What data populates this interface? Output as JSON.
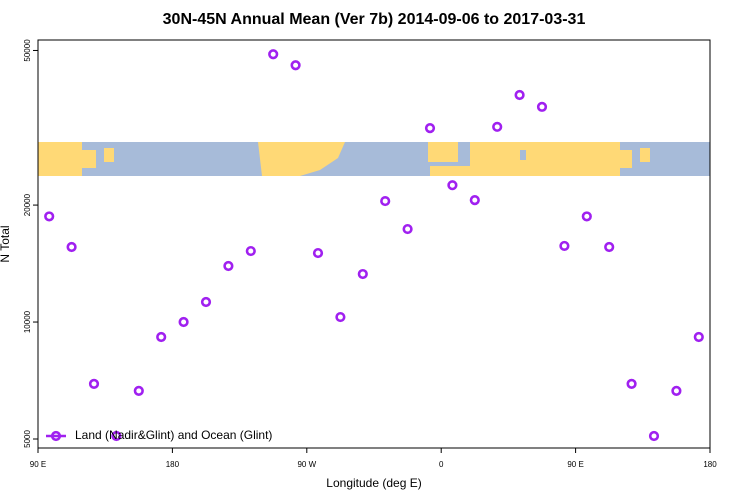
{
  "chart_data": {
    "type": "scatter",
    "title": "30N-45N Annual Mean (Ver 7b)   2014-09-06 to 2017-03-31",
    "xlabel": "Longitude (deg E)",
    "ylabel": "N Total",
    "series": [
      {
        "name": "Land (Nadir&Glint) and Ocean (Glint)",
        "color": "#a020f0",
        "x": [
          97.5,
          112.5,
          127.5,
          142.5,
          157.5,
          172.5,
          187.5,
          202.5,
          217.5,
          232.5,
          247.5,
          262.5,
          277.5,
          292.5,
          307.5,
          322.5,
          337.5,
          352.5,
          367.5,
          382.5,
          397.5,
          412.5,
          427.5,
          442.5,
          457.5,
          472.5,
          487.5,
          502.5,
          517.5,
          532.5
        ],
        "values": [
          18700,
          15600,
          6930,
          5090,
          6650,
          9150,
          10000,
          11260,
          13940,
          15230,
          48900,
          45800,
          15050,
          10300,
          13290,
          20480,
          17350,
          31550,
          22500,
          20600,
          31800,
          38400,
          35800,
          15700,
          18700,
          15600,
          6930,
          5090,
          6650,
          9150
        ]
      }
    ],
    "xlim": [
      90,
      540
    ],
    "xticks": [
      {
        "value": 90,
        "label": "90 E"
      },
      {
        "value": 180,
        "label": "180"
      },
      {
        "value": 270,
        "label": "90 W"
      },
      {
        "value": 360,
        "label": "0"
      },
      {
        "value": 450,
        "label": "90 E"
      },
      {
        "value": 540,
        "label": "180"
      }
    ],
    "ylim": [
      4740,
      53200
    ],
    "yticks": [
      5000,
      10000,
      20000,
      50000
    ],
    "log_y": true,
    "legend": "lower left"
  }
}
